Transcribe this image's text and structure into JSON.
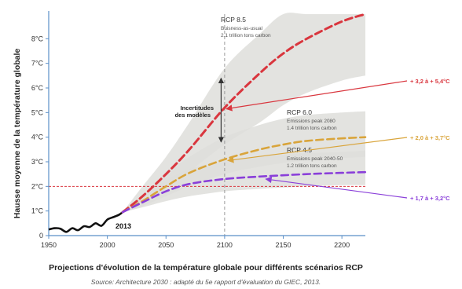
{
  "chart_data": {
    "type": "line",
    "title": "Projections d'évolution de la température globale pour différents scénarios RCP",
    "source": "Source: Architecture 2030 : adapté du 5e rapport d'évaluation du GIEC, 2013.",
    "ylabel": "Hausse moyenne de la température globale",
    "xlim": [
      1950,
      2220
    ],
    "ylim": [
      0,
      9
    ],
    "x_ticks": [
      "1950",
      "2000",
      "2050",
      "2100",
      "2150",
      "2200"
    ],
    "y_ticks": [
      "0",
      "1°C",
      "2°C",
      "3°C",
      "4°C",
      "5°C",
      "6°C",
      "7°C",
      "8°C"
    ],
    "historical": {
      "label": "2013",
      "color": "#111111",
      "x": [
        1950,
        1955,
        1960,
        1965,
        1970,
        1975,
        1980,
        1985,
        1990,
        1995,
        2000,
        2005,
        2010,
        2013
      ],
      "y": [
        0.25,
        0.3,
        0.28,
        0.15,
        0.3,
        0.22,
        0.38,
        0.35,
        0.5,
        0.4,
        0.65,
        0.75,
        0.85,
        0.95
      ]
    },
    "series": [
      {
        "name": "RCP 8.5",
        "color": "#d9363e",
        "x": [
          2013,
          2030,
          2050,
          2070,
          2100,
          2130,
          2150,
          2170,
          2200,
          2220
        ],
        "y": [
          0.95,
          1.6,
          2.5,
          3.5,
          5.2,
          6.6,
          7.4,
          8.0,
          8.7,
          9.0
        ],
        "band_low": [
          0.95,
          1.3,
          1.9,
          2.6,
          3.7,
          4.6,
          5.3,
          5.8,
          6.3,
          6.5
        ],
        "band_high": [
          0.95,
          2.0,
          3.2,
          4.6,
          6.8,
          8.2,
          9.0,
          9.0,
          9.0,
          9.0
        ]
      },
      {
        "name": "RCP 6.0",
        "color": "#d9a43a",
        "x": [
          2013,
          2030,
          2050,
          2070,
          2100,
          2130,
          2150,
          2170,
          2200,
          2220
        ],
        "y": [
          0.95,
          1.4,
          2.0,
          2.55,
          3.1,
          3.5,
          3.7,
          3.85,
          3.95,
          4.0
        ],
        "band_low": [
          0.95,
          1.2,
          1.6,
          2.0,
          2.5,
          2.8,
          2.95,
          3.05,
          3.15,
          3.2
        ],
        "band_high": [
          0.95,
          1.65,
          2.5,
          3.2,
          4.0,
          4.5,
          4.75,
          4.9,
          5.0,
          5.05
        ]
      },
      {
        "name": "RCP 4.5",
        "color": "#8a3fd9",
        "x": [
          2013,
          2030,
          2050,
          2070,
          2100,
          2130,
          2150,
          2170,
          2200,
          2220
        ],
        "y": [
          0.95,
          1.35,
          1.8,
          2.1,
          2.3,
          2.4,
          2.45,
          2.5,
          2.55,
          2.58
        ],
        "band_low": [
          0.95,
          1.15,
          1.4,
          1.6,
          1.8,
          1.9,
          1.95,
          2.0,
          2.05,
          2.05
        ],
        "band_high": [
          0.95,
          1.6,
          2.25,
          2.7,
          3.05,
          3.2,
          3.3,
          3.35,
          3.4,
          3.45
        ]
      }
    ],
    "reference_line": {
      "y": 2,
      "color": "#d9363e"
    },
    "vertical_reference": {
      "x": 2100
    },
    "annotations": [
      {
        "title": "RCP 8.5",
        "lines": [
          "Buisness-as-usual",
          "2.1 trillion tons carbon"
        ]
      },
      {
        "title": "RCP 6.0",
        "lines": [
          "Emissions peak 2080",
          "1.4 trillion tons carbon"
        ]
      },
      {
        "title": "RCP 4.5",
        "lines": [
          "Emissions peak 2040-50",
          "1.2 trillion tons carbon"
        ]
      }
    ],
    "uncertainty_label": [
      "Incertitudes",
      "des modèles"
    ],
    "range_labels": [
      {
        "text": "+ 3,2 à + 5,4°C",
        "color": "#d9363e"
      },
      {
        "text": "+ 2,0 à + 3,7°C",
        "color": "#d9a43a"
      },
      {
        "text": "+ 1,7 à + 3,2°C",
        "color": "#8a3fd9"
      }
    ],
    "band_color": "#dededb",
    "axis_color": "#5b8fc7"
  }
}
